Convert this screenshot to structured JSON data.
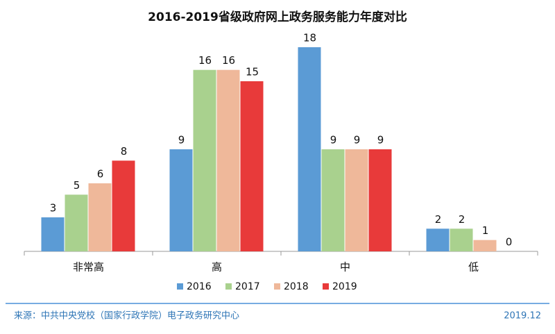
{
  "chart_data": {
    "type": "bar",
    "title": "2016-2019省级政府网上政务服务能力年度对比",
    "categories": [
      "非常高",
      "高",
      "中",
      "低"
    ],
    "series": [
      {
        "name": "2016",
        "color": "#5b9bd5",
        "values": [
          3,
          9,
          18,
          2
        ]
      },
      {
        "name": "2017",
        "color": "#a9d18e",
        "values": [
          5,
          16,
          9,
          2
        ]
      },
      {
        "name": "2018",
        "color": "#efb89a",
        "values": [
          6,
          16,
          9,
          1
        ]
      },
      {
        "name": "2019",
        "color": "#e83a3a",
        "values": [
          8,
          15,
          9,
          0
        ]
      }
    ]
  },
  "footer": {
    "source": "来源：中共中央党校（国家行政学院）电子政务研究中心",
    "date": "2019.12"
  }
}
